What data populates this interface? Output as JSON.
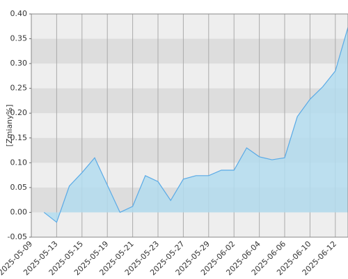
{
  "chart_data": {
    "type": "area",
    "y_label": "[Zmiany%]",
    "categories": [
      "2025-05-09",
      null,
      "2025-05-13",
      null,
      "2025-05-15",
      null,
      "2025-05-19",
      null,
      "2025-05-21",
      null,
      "2025-05-23",
      null,
      "2025-05-27",
      null,
      "2025-05-29",
      null,
      "2025-06-02",
      null,
      "2025-06-04",
      null,
      "2025-06-06",
      null,
      "2025-06-10",
      null,
      "2025-06-12",
      null
    ],
    "values": [
      null,
      0,
      -0.02,
      0.053,
      0.08,
      0.11,
      0.055,
      0.0,
      0.012,
      0.074,
      0.062,
      0.024,
      0.067,
      0.074,
      0.074,
      0.085,
      0.085,
      0.13,
      0.112,
      0.106,
      0.11,
      0.193,
      0.228,
      0.253,
      0.285,
      0.373
    ],
    "color": "#5aaae6",
    "fill": "#b3dcef",
    "ylim": [
      -0.05,
      0.4
    ],
    "yticks": [
      {
        "value": -0.05,
        "label": "-0.05"
      },
      {
        "value": 0,
        "label": "0.00"
      },
      {
        "value": 0.05,
        "label": "0.05"
      },
      {
        "value": 0.1,
        "label": "0.10"
      },
      {
        "value": 0.15,
        "label": "0.15"
      },
      {
        "value": 0.2,
        "label": "0.20"
      },
      {
        "value": 0.25,
        "label": "0.25"
      },
      {
        "value": 0.3,
        "label": "0.30"
      },
      {
        "value": 0.35,
        "label": "0.35"
      },
      {
        "value": 0.4,
        "label": "0.40"
      }
    ],
    "grid": true
  }
}
